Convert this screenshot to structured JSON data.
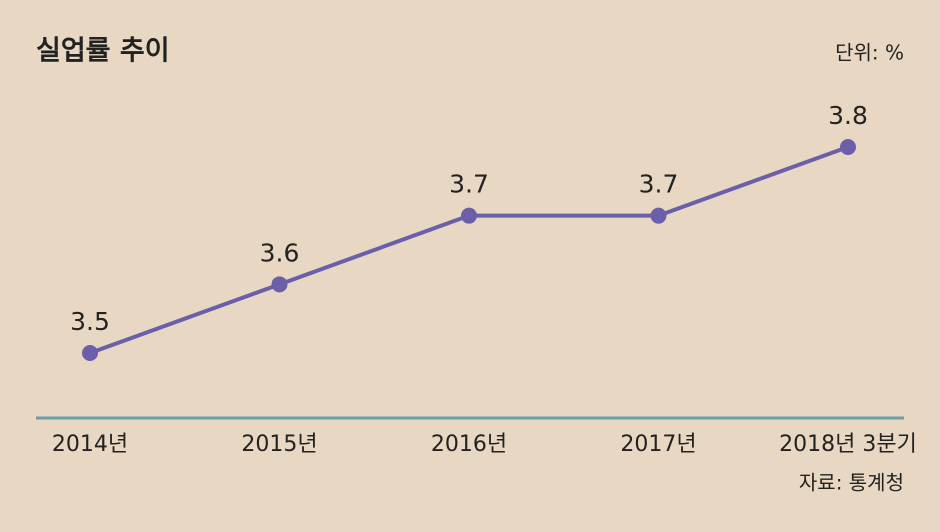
{
  "chart_data": {
    "type": "line",
    "title": "실업률 추이",
    "unit_label": "단위: %",
    "source": "자료: 통계청",
    "categories": [
      "2014년",
      "2015년",
      "2016년",
      "2017년",
      "2018년 3분기"
    ],
    "values": [
      3.5,
      3.6,
      3.7,
      3.7,
      3.8
    ],
    "color": "#6a5fa8"
  }
}
